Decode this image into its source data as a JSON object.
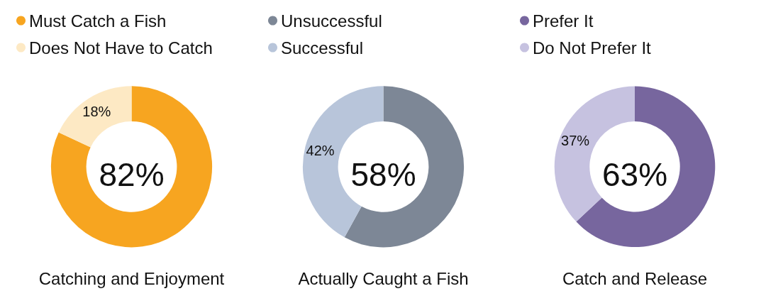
{
  "chart_data": [
    {
      "type": "donut",
      "title": "Catching and Enjoyment",
      "categories": [
        "Must Catch a Fish",
        "Does Not Have to Catch"
      ],
      "values": [
        82,
        18
      ],
      "colors": [
        "#f7a520",
        "#fde9c4"
      ],
      "value_labels": [
        null,
        "18%"
      ],
      "annotations": [
        "82%"
      ],
      "legend": "top left"
    },
    {
      "type": "donut",
      "title": "Actually Caught a Fish",
      "categories": [
        "Unsuccessful",
        "Successful"
      ],
      "values": [
        58,
        42
      ],
      "colors": [
        "#7d8796",
        "#b8c5da"
      ],
      "value_labels": [
        null,
        "42%"
      ],
      "annotations": [
        "58%"
      ],
      "legend": "top left"
    },
    {
      "type": "donut",
      "title": "Catch and Release",
      "categories": [
        "Prefer It",
        "Do Not Prefer It"
      ],
      "values": [
        63,
        37
      ],
      "colors": [
        "#77669e",
        "#c6c2e0"
      ],
      "value_labels": [
        null,
        "37%"
      ],
      "annotations": [
        "63%"
      ],
      "legend": "top left"
    }
  ]
}
